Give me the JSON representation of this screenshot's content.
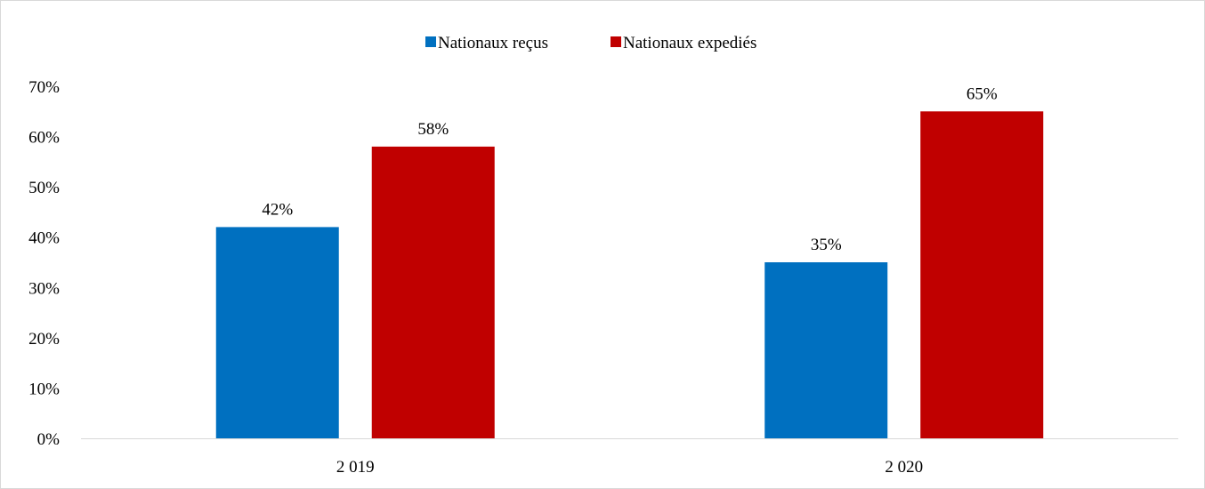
{
  "chart_data": {
    "type": "bar",
    "categories": [
      "2 019",
      "2 020"
    ],
    "series": [
      {
        "name": "Nationaux reçus",
        "values": [
          42,
          35
        ],
        "labels": [
          "42%",
          "35%"
        ],
        "color": "#0070C0"
      },
      {
        "name": "Nationaux expediés",
        "values": [
          58,
          65
        ],
        "labels": [
          "58%",
          "65%"
        ],
        "color": "#C00000"
      }
    ],
    "title": "",
    "xlabel": "",
    "ylabel": "",
    "ylim": [
      0,
      70
    ],
    "yticks": [
      "0%",
      "10%",
      "20%",
      "30%",
      "40%",
      "50%",
      "60%",
      "70%"
    ],
    "grid": false,
    "legend_position": "top"
  }
}
